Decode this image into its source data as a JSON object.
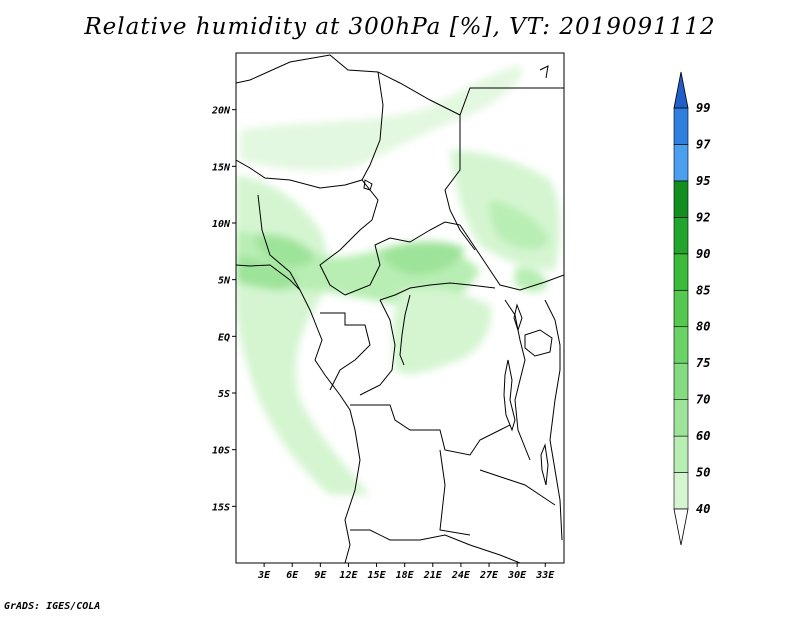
{
  "title": "Relative humidity at 300hPa [%], VT: 2019091112",
  "credit": "GrADS: IGES/COLA",
  "map": {
    "lat_labels": [
      "20N",
      "15N",
      "10N",
      "5N",
      "EQ",
      "5S",
      "10S",
      "15S"
    ],
    "lon_labels": [
      "3E",
      "6E",
      "9E",
      "12E",
      "15E",
      "18E",
      "21E",
      "24E",
      "27E",
      "30E",
      "33E"
    ],
    "lat_range": [
      -20,
      25
    ],
    "lon_range": [
      0,
      35
    ]
  },
  "colorbar": {
    "labels": [
      "40",
      "50",
      "60",
      "70",
      "75",
      "80",
      "85",
      "90",
      "92",
      "95",
      "97",
      "99"
    ],
    "colors": [
      "#ebfaeb",
      "#d4f5d0",
      "#b8eeb3",
      "#9ee39a",
      "#84db80",
      "#6bd266",
      "#54c84f",
      "#3cba3a",
      "#22a52c",
      "#138f1f",
      "#4aa0ee",
      "#2f7fe0",
      "#1e5fc8"
    ]
  }
}
